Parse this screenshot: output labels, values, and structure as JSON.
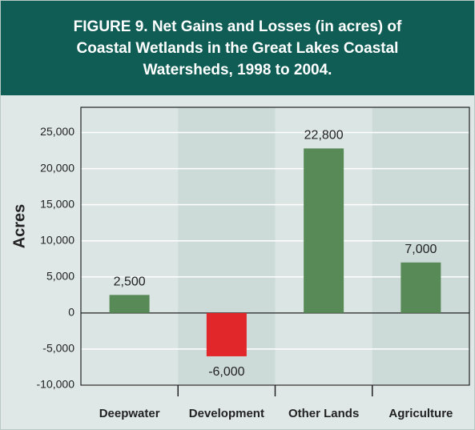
{
  "chart_data": {
    "type": "bar",
    "title": "FIGURE 9.  Net Gains and Losses (in acres) of Coastal Wetlands in the Great Lakes Coastal Watersheds, 1998 to 2004.",
    "ylabel": "Acres",
    "categories": [
      "Deepwater",
      "Development",
      "Other Lands",
      "Agriculture"
    ],
    "values": [
      2500,
      -6000,
      22800,
      7000
    ],
    "value_labels": [
      "2,500",
      "-6,000",
      "22,800",
      "7,000"
    ],
    "colors": [
      "#588a57",
      "#e1272a",
      "#588a57",
      "#588a57"
    ],
    "ylim": [
      -10000,
      28500
    ],
    "yticks": [
      {
        "value": -10000,
        "label": "-10,000"
      },
      {
        "value": -5000,
        "label": "-5,000"
      },
      0,
      {
        "value": 5000,
        "label": "5,000"
      },
      {
        "value": 10000,
        "label": "10,000"
      },
      {
        "value": 15000,
        "label": "15,000"
      },
      {
        "value": 20000,
        "label": "20,000"
      },
      {
        "value": 25000,
        "label": "25,000"
      }
    ],
    "grid": true
  }
}
